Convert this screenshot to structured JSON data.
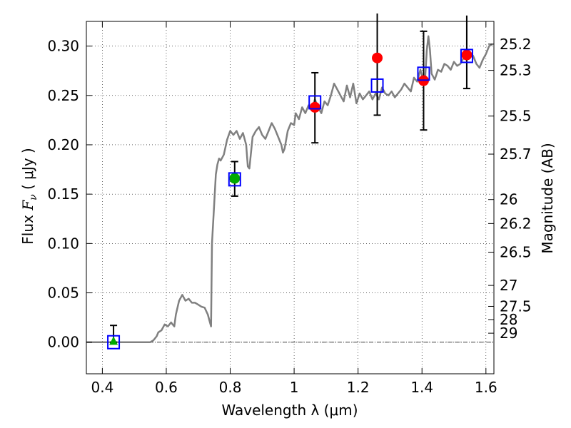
{
  "chart_data": {
    "type": "scatter",
    "xlabel": "Wavelength  λ (μm)",
    "ylabel_prefix": "Flux  ",
    "ylabel_var": "F",
    "ylabel_sub": "ν",
    "ylabel_unit": "  ( μJy )",
    "y2label": "Magnitude (AB)",
    "xlim": [
      0.35,
      1.625
    ],
    "ylim": [
      -0.032,
      0.325
    ],
    "grid": true,
    "xticks": [
      0.4,
      0.6,
      0.8,
      1.0,
      1.2,
      1.4,
      1.6
    ],
    "xtick_labels": [
      "0.4",
      "0.6",
      "0.8",
      "1",
      "1.2",
      "1.4",
      "1.6"
    ],
    "yticks": [
      0.0,
      0.05,
      0.1,
      0.15,
      0.2,
      0.25,
      0.3
    ],
    "ytick_labels": [
      "0.00",
      "0.05",
      "0.10",
      "0.15",
      "0.20",
      "0.25",
      "0.30"
    ],
    "y2ticks": [
      {
        "label": "25.2",
        "mag": 25.2
      },
      {
        "label": "25.3",
        "mag": 25.3
      },
      {
        "label": "25.5",
        "mag": 25.5
      },
      {
        "label": "25.7",
        "mag": 25.7
      },
      {
        "label": "26",
        "mag": 26.0
      },
      {
        "label": "26.2",
        "mag": 26.2
      },
      {
        "label": "26.5",
        "mag": 26.5
      },
      {
        "label": "27",
        "mag": 27.0
      },
      {
        "label": "27.5",
        "mag": 27.5
      },
      {
        "label": "28",
        "mag": 28.0
      },
      {
        "label": "29",
        "mag": 29.0
      }
    ],
    "colors": {
      "sed": "#808080",
      "red": "#ff0000",
      "green": "#00aa00",
      "blue": "#0000ff",
      "errorbar": "#000000",
      "zero_line": "#000000"
    },
    "sed_model": [
      [
        0.35,
        0.0
      ],
      [
        0.55,
        0.0
      ],
      [
        0.56,
        0.002
      ],
      [
        0.57,
        0.006
      ],
      [
        0.575,
        0.01
      ],
      [
        0.585,
        0.012
      ],
      [
        0.595,
        0.018
      ],
      [
        0.605,
        0.016
      ],
      [
        0.615,
        0.02
      ],
      [
        0.62,
        0.018
      ],
      [
        0.625,
        0.016
      ],
      [
        0.63,
        0.028
      ],
      [
        0.64,
        0.042
      ],
      [
        0.65,
        0.048
      ],
      [
        0.66,
        0.042
      ],
      [
        0.67,
        0.044
      ],
      [
        0.68,
        0.04
      ],
      [
        0.69,
        0.04
      ],
      [
        0.7,
        0.038
      ],
      [
        0.71,
        0.036
      ],
      [
        0.72,
        0.035
      ],
      [
        0.73,
        0.028
      ],
      [
        0.735,
        0.022
      ],
      [
        0.74,
        0.016
      ],
      [
        0.743,
        0.1
      ],
      [
        0.75,
        0.14
      ],
      [
        0.755,
        0.17
      ],
      [
        0.76,
        0.18
      ],
      [
        0.765,
        0.186
      ],
      [
        0.77,
        0.184
      ],
      [
        0.78,
        0.19
      ],
      [
        0.79,
        0.205
      ],
      [
        0.8,
        0.214
      ],
      [
        0.81,
        0.21
      ],
      [
        0.82,
        0.214
      ],
      [
        0.83,
        0.206
      ],
      [
        0.84,
        0.212
      ],
      [
        0.85,
        0.2
      ],
      [
        0.855,
        0.178
      ],
      [
        0.86,
        0.176
      ],
      [
        0.87,
        0.208
      ],
      [
        0.88,
        0.214
      ],
      [
        0.89,
        0.218
      ],
      [
        0.9,
        0.21
      ],
      [
        0.91,
        0.206
      ],
      [
        0.92,
        0.214
      ],
      [
        0.93,
        0.222
      ],
      [
        0.94,
        0.216
      ],
      [
        0.95,
        0.208
      ],
      [
        0.96,
        0.2
      ],
      [
        0.965,
        0.192
      ],
      [
        0.97,
        0.196
      ],
      [
        0.98,
        0.214
      ],
      [
        0.99,
        0.222
      ],
      [
        1.0,
        0.22
      ],
      [
        1.005,
        0.232
      ],
      [
        1.015,
        0.226
      ],
      [
        1.025,
        0.238
      ],
      [
        1.035,
        0.232
      ],
      [
        1.045,
        0.24
      ],
      [
        1.055,
        0.236
      ],
      [
        1.065,
        0.246
      ],
      [
        1.075,
        0.238
      ],
      [
        1.085,
        0.232
      ],
      [
        1.095,
        0.244
      ],
      [
        1.105,
        0.24
      ],
      [
        1.115,
        0.25
      ],
      [
        1.125,
        0.262
      ],
      [
        1.135,
        0.256
      ],
      [
        1.145,
        0.25
      ],
      [
        1.155,
        0.244
      ],
      [
        1.165,
        0.26
      ],
      [
        1.175,
        0.248
      ],
      [
        1.185,
        0.262
      ],
      [
        1.195,
        0.242
      ],
      [
        1.205,
        0.252
      ],
      [
        1.215,
        0.246
      ],
      [
        1.225,
        0.25
      ],
      [
        1.235,
        0.254
      ],
      [
        1.245,
        0.246
      ],
      [
        1.255,
        0.252
      ],
      [
        1.265,
        0.246
      ],
      [
        1.275,
        0.258
      ],
      [
        1.285,
        0.252
      ],
      [
        1.295,
        0.25
      ],
      [
        1.305,
        0.254
      ],
      [
        1.315,
        0.248
      ],
      [
        1.325,
        0.252
      ],
      [
        1.335,
        0.256
      ],
      [
        1.345,
        0.262
      ],
      [
        1.355,
        0.258
      ],
      [
        1.365,
        0.254
      ],
      [
        1.375,
        0.268
      ],
      [
        1.385,
        0.264
      ],
      [
        1.395,
        0.276
      ],
      [
        1.4,
        0.27
      ],
      [
        1.41,
        0.268
      ],
      [
        1.415,
        0.296
      ],
      [
        1.42,
        0.31
      ],
      [
        1.425,
        0.296
      ],
      [
        1.43,
        0.272
      ],
      [
        1.44,
        0.266
      ],
      [
        1.45,
        0.276
      ],
      [
        1.46,
        0.274
      ],
      [
        1.47,
        0.282
      ],
      [
        1.48,
        0.28
      ],
      [
        1.49,
        0.276
      ],
      [
        1.5,
        0.284
      ],
      [
        1.51,
        0.28
      ],
      [
        1.52,
        0.282
      ],
      [
        1.53,
        0.288
      ],
      [
        1.54,
        0.286
      ],
      [
        1.55,
        0.294
      ],
      [
        1.56,
        0.29
      ],
      [
        1.57,
        0.282
      ],
      [
        1.58,
        0.278
      ],
      [
        1.59,
        0.286
      ],
      [
        1.6,
        0.292
      ],
      [
        1.61,
        0.3
      ],
      [
        1.62,
        0.302
      ]
    ],
    "model_photometry": [
      {
        "x": 0.435,
        "y": 0.0
      },
      {
        "x": 0.814,
        "y": 0.165
      },
      {
        "x": 1.065,
        "y": 0.243
      },
      {
        "x": 1.26,
        "y": 0.26
      },
      {
        "x": 1.405,
        "y": 0.272
      },
      {
        "x": 1.54,
        "y": 0.29
      }
    ],
    "observed_red": [
      {
        "x": 1.065,
        "y": 0.238,
        "err_lo": 0.036,
        "err_hi": 0.035
      },
      {
        "x": 1.26,
        "y": 0.288,
        "err_lo": 0.058,
        "err_hi": 0.045
      },
      {
        "x": 1.405,
        "y": 0.265,
        "err_lo": 0.05,
        "err_hi": 0.05
      },
      {
        "x": 1.54,
        "y": 0.291,
        "err_lo": 0.034,
        "err_hi": 0.04
      }
    ],
    "observed_green_circle": [
      {
        "x": 0.814,
        "y": 0.166,
        "err_lo": 0.018,
        "err_hi": 0.017
      }
    ],
    "observed_green_triangle": [
      {
        "x": 0.435,
        "y": 0.001,
        "err_lo": 0.001,
        "err_hi": 0.016
      }
    ]
  }
}
